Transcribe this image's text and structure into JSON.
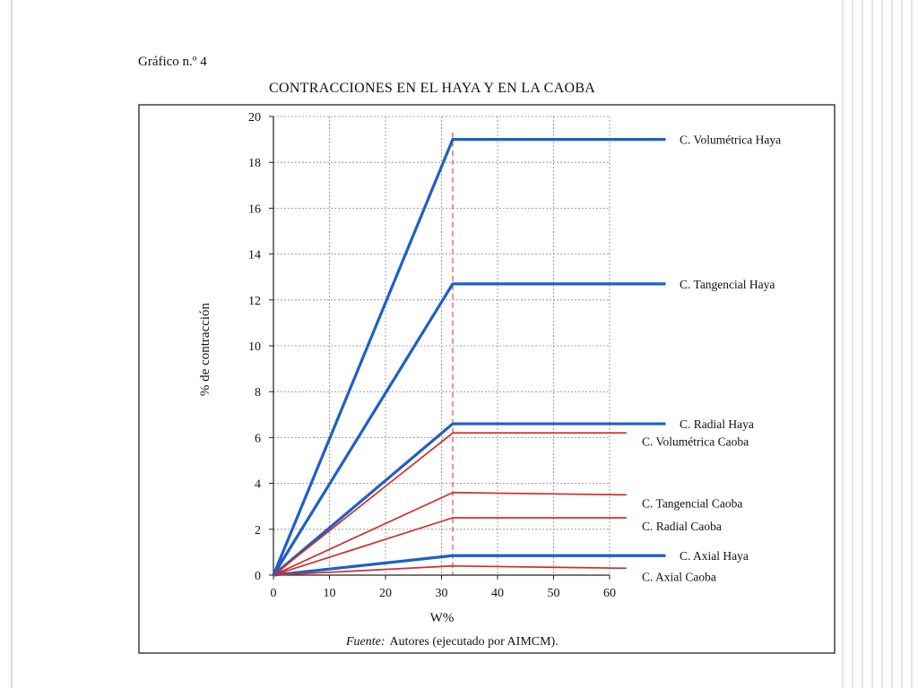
{
  "figure_label": "Gráfico n.º 4",
  "source": {
    "prefix": "Fuente:",
    "text": "Autores (ejecutado por AIMCM)."
  },
  "colors": {
    "haya": "#1f5fc8",
    "caoba": "#d42b2b",
    "grid": "#8a8a8a",
    "fsp_line": "#d42b2b"
  },
  "chart_data": {
    "type": "line",
    "title": "CONTRACCIONES EN EL HAYA Y EN LA CAOBA",
    "xlabel": "W%",
    "ylabel": "% de contracción",
    "xlim": [
      0,
      60
    ],
    "ylim": [
      0,
      20
    ],
    "xticks": [
      0,
      10,
      20,
      30,
      40,
      50,
      60
    ],
    "yticks": [
      0,
      2,
      4,
      6,
      8,
      10,
      12,
      14,
      16,
      18,
      20
    ],
    "grid": true,
    "reference_line_x": 32,
    "series": [
      {
        "name": "C. Volumétrica Haya",
        "group": "haya",
        "points": [
          [
            0,
            0
          ],
          [
            32,
            19.0
          ],
          [
            70,
            19.0
          ]
        ]
      },
      {
        "name": "C. Tangencial Haya",
        "group": "haya",
        "points": [
          [
            0,
            0
          ],
          [
            32,
            12.7
          ],
          [
            70,
            12.7
          ]
        ]
      },
      {
        "name": "C. Radial Haya",
        "group": "haya",
        "points": [
          [
            0,
            0
          ],
          [
            32,
            6.6
          ],
          [
            70,
            6.6
          ]
        ]
      },
      {
        "name": "C. Volumétrica Caoba",
        "group": "caoba",
        "points": [
          [
            0,
            0
          ],
          [
            32,
            6.2
          ],
          [
            63,
            6.2
          ]
        ]
      },
      {
        "name": "C. Tangencial Caoba",
        "group": "caoba",
        "points": [
          [
            0,
            0
          ],
          [
            32,
            3.6
          ],
          [
            63,
            3.5
          ]
        ]
      },
      {
        "name": "C. Radial Caoba",
        "group": "caoba",
        "points": [
          [
            0,
            0
          ],
          [
            32,
            2.5
          ],
          [
            63,
            2.5
          ]
        ]
      },
      {
        "name": "C. Axial Haya",
        "group": "haya",
        "points": [
          [
            0,
            0
          ],
          [
            32,
            0.85
          ],
          [
            70,
            0.85
          ]
        ]
      },
      {
        "name": "C. Axial Caoba",
        "group": "caoba",
        "points": [
          [
            0,
            0
          ],
          [
            32,
            0.4
          ],
          [
            63,
            0.3
          ]
        ]
      }
    ]
  }
}
